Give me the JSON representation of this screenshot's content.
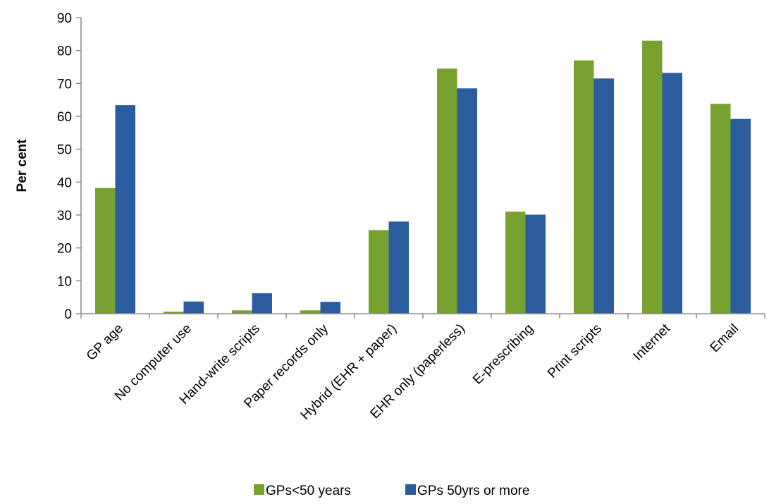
{
  "chart_data": {
    "type": "bar",
    "title": "",
    "xlabel": "",
    "ylabel": "Per cent",
    "ylim": [
      0,
      90
    ],
    "yticks": [
      0,
      10,
      20,
      30,
      40,
      50,
      60,
      70,
      80,
      90
    ],
    "grid": false,
    "legend_position": "bottom-center",
    "categories": [
      "GP age",
      "No computer use",
      "Hand-write scripts",
      "Paper records only",
      "Hybrid (EHR + paper)",
      "EHR only (paperless)",
      "E-prescribing",
      "Print scripts",
      "Internet",
      "Email"
    ],
    "series": [
      {
        "name": "GPs<50 years",
        "color": "#77a22f",
        "values": [
          38.2,
          0.6,
          1.0,
          1.0,
          25.4,
          74.5,
          31.0,
          77.0,
          83.0,
          63.8
        ]
      },
      {
        "name": "GPs 50yrs or more",
        "color": "#2a5c9e",
        "values": [
          63.4,
          3.7,
          6.2,
          3.6,
          28.0,
          68.5,
          30.1,
          71.5,
          73.2,
          59.2
        ]
      }
    ]
  }
}
